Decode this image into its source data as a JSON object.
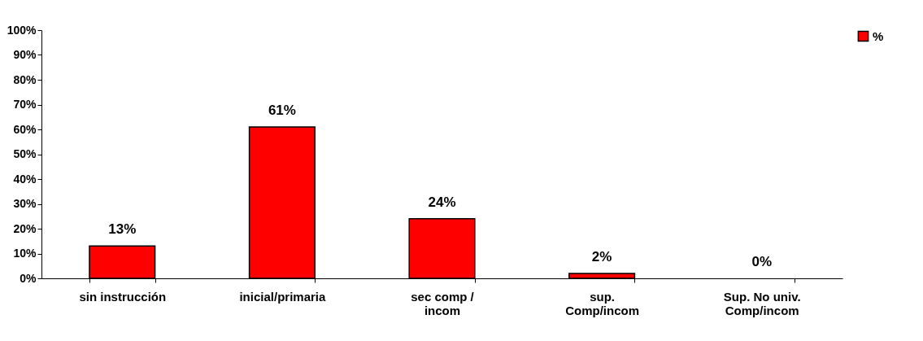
{
  "chart_data": {
    "type": "bar",
    "categories": [
      "sin instrucción",
      "inicial/primaria",
      "sec comp /\nincom",
      "sup.\nComp/incom",
      "Sup. No univ.\nComp/incom"
    ],
    "series": [
      {
        "name": "%",
        "color": "#ff0000",
        "values": [
          13,
          61,
          24,
          2,
          0
        ],
        "value_labels": [
          "13%",
          "61%",
          "24%",
          "2%",
          "0%"
        ]
      }
    ],
    "ylim": [
      0,
      100
    ],
    "yticks": [
      {
        "value": 0,
        "label": "0%"
      },
      {
        "value": 10,
        "label": "10%"
      },
      {
        "value": 20,
        "label": "20%"
      },
      {
        "value": 30,
        "label": "30%"
      },
      {
        "value": 40,
        "label": "40%"
      },
      {
        "value": 50,
        "label": "50%"
      },
      {
        "value": 60,
        "label": "60%"
      },
      {
        "value": 70,
        "label": "70%"
      },
      {
        "value": 80,
        "label": "80%"
      },
      {
        "value": 90,
        "label": "90%"
      },
      {
        "value": 100,
        "label": "100%"
      }
    ],
    "grid": false,
    "legend": "right"
  }
}
